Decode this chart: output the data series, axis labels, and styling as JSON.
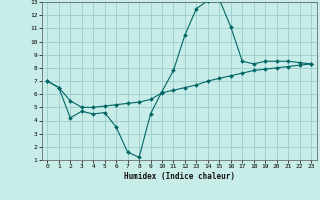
{
  "xlabel": "Humidex (Indice chaleur)",
  "background_color": "#c8ece8",
  "grid_color": "#99cccc",
  "line_color": "#006666",
  "xlim": [
    -0.5,
    23.5
  ],
  "ylim": [
    1,
    13
  ],
  "xticks": [
    0,
    1,
    2,
    3,
    4,
    5,
    6,
    7,
    8,
    9,
    10,
    11,
    12,
    13,
    14,
    15,
    16,
    17,
    18,
    19,
    20,
    21,
    22,
    23
  ],
  "yticks": [
    1,
    2,
    3,
    4,
    5,
    6,
    7,
    8,
    9,
    10,
    11,
    12,
    13
  ],
  "curve1_x": [
    0,
    1,
    2,
    3,
    4,
    5,
    6,
    7,
    8,
    9,
    10,
    11,
    12,
    13,
    14,
    15,
    16,
    17,
    18,
    19,
    20,
    21,
    22,
    23
  ],
  "curve1_y": [
    7.0,
    6.5,
    4.2,
    4.7,
    4.5,
    4.6,
    3.5,
    1.6,
    1.2,
    4.5,
    6.2,
    7.8,
    10.5,
    12.5,
    13.1,
    13.2,
    11.1,
    8.5,
    8.3,
    8.5,
    8.5,
    8.5,
    8.4,
    8.3
  ],
  "curve2_x": [
    0,
    1,
    2,
    3,
    4,
    5,
    6,
    7,
    8,
    9,
    10,
    11,
    12,
    13,
    14,
    15,
    16,
    17,
    18,
    19,
    20,
    21,
    22,
    23
  ],
  "curve2_y": [
    7.0,
    6.5,
    5.5,
    5.0,
    5.0,
    5.1,
    5.2,
    5.3,
    5.4,
    5.6,
    6.1,
    6.3,
    6.5,
    6.7,
    7.0,
    7.2,
    7.4,
    7.6,
    7.8,
    7.9,
    8.0,
    8.1,
    8.2,
    8.3
  ]
}
